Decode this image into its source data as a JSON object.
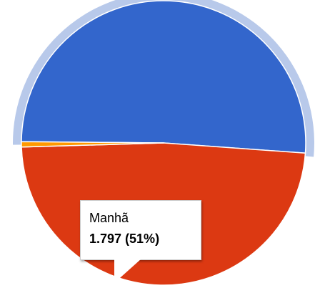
{
  "chart_data": {
    "type": "pie",
    "slices": [
      {
        "name": "Manhã",
        "value": 1797,
        "percent": 51,
        "color": "#3366cc",
        "highlighted": true
      },
      {
        "name": "",
        "percent": 48.4,
        "color": "#dc3912",
        "label": "48,4%"
      },
      {
        "name": "",
        "percent": 0.6,
        "color": "#ff9900"
      }
    ],
    "legend": "none",
    "tooltip": {
      "title": "Manhã",
      "value": "1.797 (51%)"
    }
  }
}
